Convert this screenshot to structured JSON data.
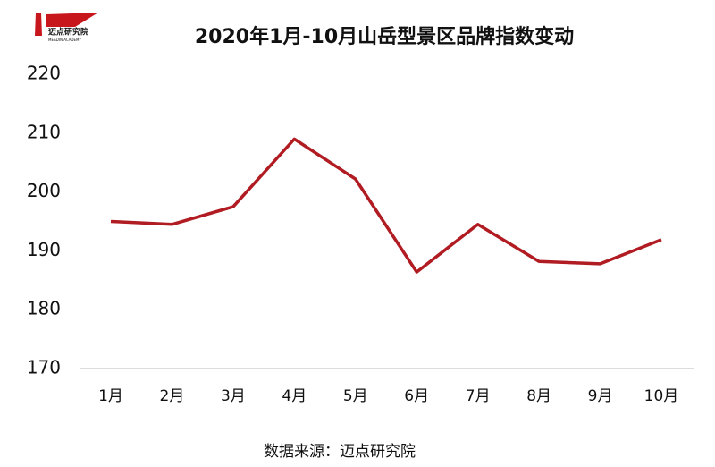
{
  "logo": {
    "name": "迈点研究院",
    "subtitle": "MEADIN ACADEMY"
  },
  "chart_data": {
    "type": "line",
    "title": "2020年1月-10月山岳型景区品牌指数变动",
    "categories": [
      "1月",
      "2月",
      "3月",
      "4月",
      "5月",
      "6月",
      "7月",
      "8月",
      "9月",
      "10月"
    ],
    "series": [
      {
        "name": "山岳型景区品牌指数",
        "color": "#b01c22",
        "values": [
          195,
          194.5,
          197.5,
          209,
          202.2,
          186.4,
          194.5,
          188.2,
          187.8,
          191.9
        ]
      }
    ],
    "ylim": [
      170,
      220
    ],
    "yticks": [
      170,
      180,
      190,
      200,
      210,
      220
    ],
    "grid": false
  },
  "source": "数据来源：迈点研究院"
}
